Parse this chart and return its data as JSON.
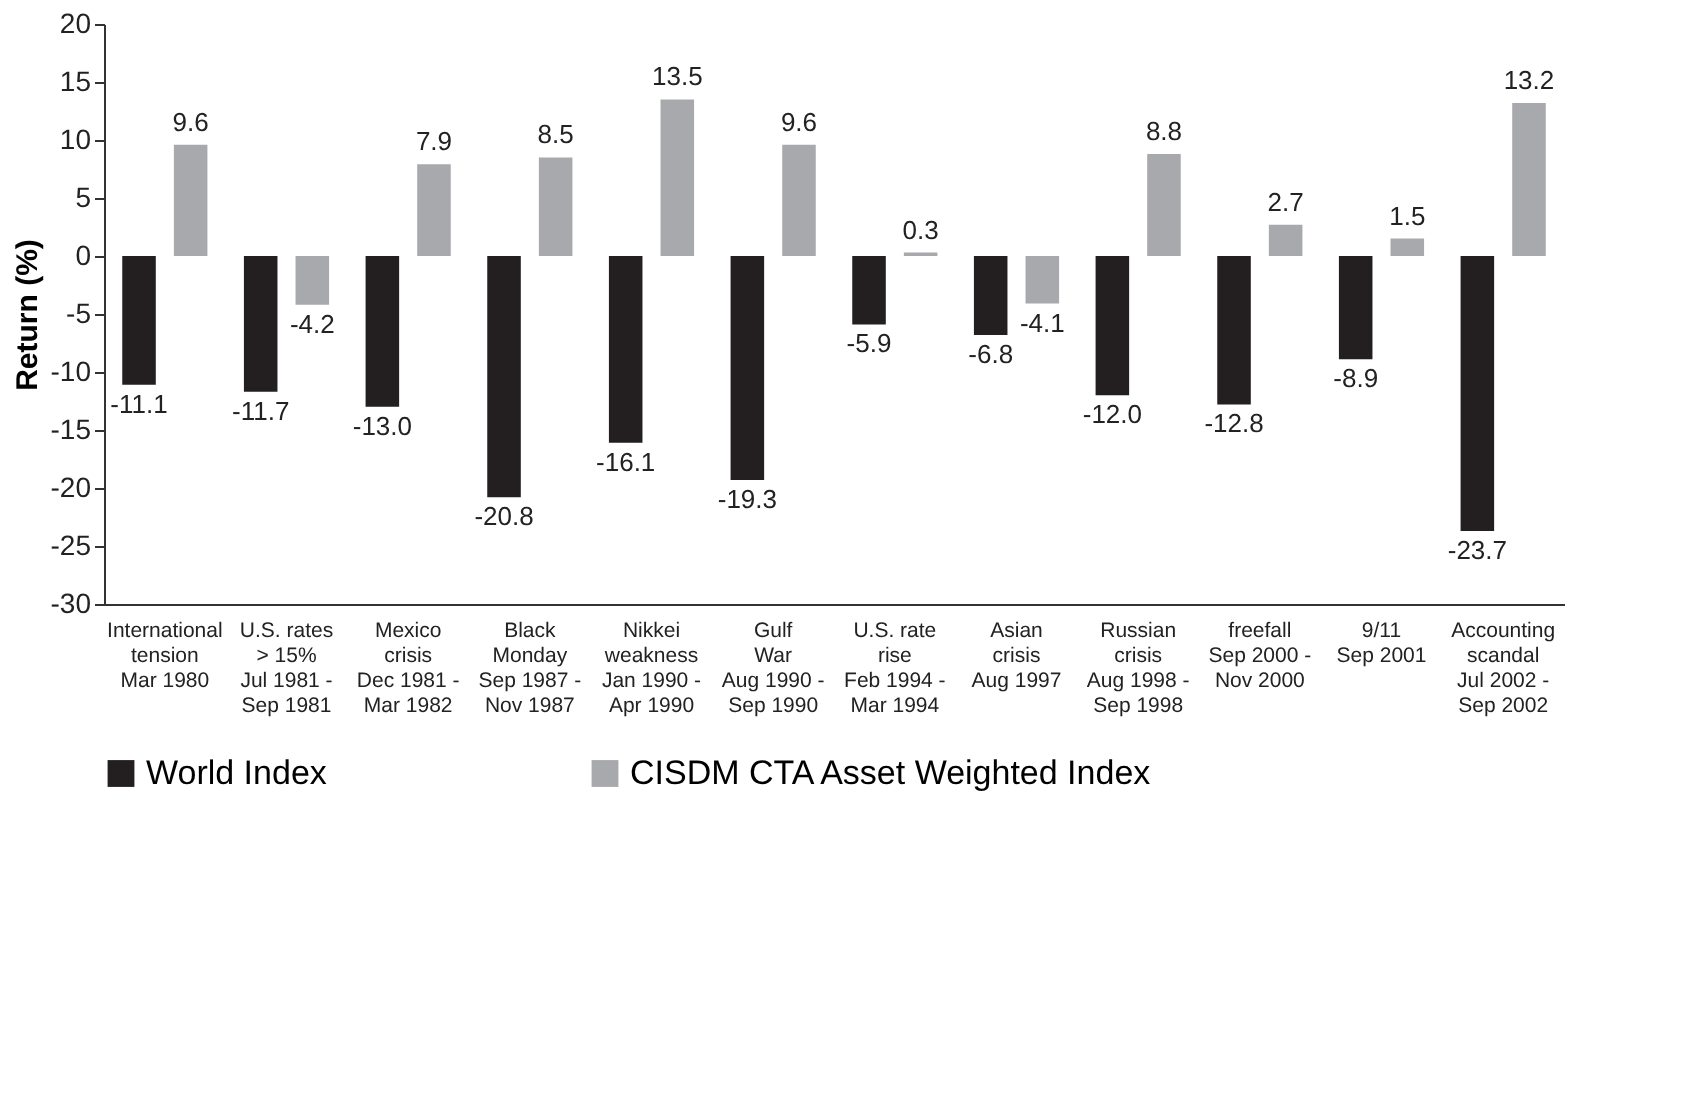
{
  "chart_data": {
    "type": "bar",
    "ylabel": "Return (%)",
    "categories": [
      "International\ntension\nMar 1980",
      "U.S. rates\n> 15%\nJul 1981 -\nSep 1981",
      "Mexico\ncrisis\nDec 1981 -\nMar 1982",
      "Black\nMonday\nSep 1987 -\nNov 1987",
      "Nikkei\nweakness\nJan 1990 -\nApr 1990",
      "Gulf\nWar\nAug 1990 -\nSep 1990",
      "U.S. rate\nrise\nFeb 1994 -\nMar 1994",
      "Asian\ncrisis\nAug 1997",
      "Russian\ncrisis\nAug 1998 -\nSep 1998",
      "freefall\nSep 2000 -\nNov 2000",
      "9/11\nSep 2001",
      "Accounting\nscandal\nJul 2002 -\nSep 2002"
    ],
    "series": [
      {
        "name": "World Index",
        "color": "#231f20",
        "values": [
          -11.1,
          -11.7,
          -13.0,
          -20.8,
          -16.1,
          -19.3,
          -5.9,
          -6.8,
          -12.0,
          -12.8,
          -8.9,
          -23.7
        ],
        "value_labels": [
          "-11.1",
          "-11.7",
          "-13.0",
          "-20.8",
          "-16.1",
          "-19.3",
          "-5.9",
          "-6.8",
          "-12.0",
          "-12.8",
          "-8.9",
          "-23.7"
        ]
      },
      {
        "name": "CISDM CTA  Asset Weighted Index",
        "color": "#a7a9ac",
        "values": [
          9.6,
          -4.2,
          7.9,
          8.5,
          13.5,
          9.6,
          0.3,
          -4.1,
          8.8,
          2.7,
          1.5,
          13.2
        ],
        "value_labels": [
          "9.6",
          "-4.2",
          "7.9",
          "8.5",
          "13.5",
          "9.6",
          "0.3",
          "-4.1",
          "8.8",
          "2.7",
          "1.5",
          "13.2"
        ]
      }
    ],
    "ylim": [
      -30,
      20
    ],
    "yticks": [
      -30,
      -25,
      -20,
      -15,
      -10,
      -5,
      0,
      5,
      10,
      15,
      20
    ],
    "grid": false,
    "legend": "bottom"
  }
}
